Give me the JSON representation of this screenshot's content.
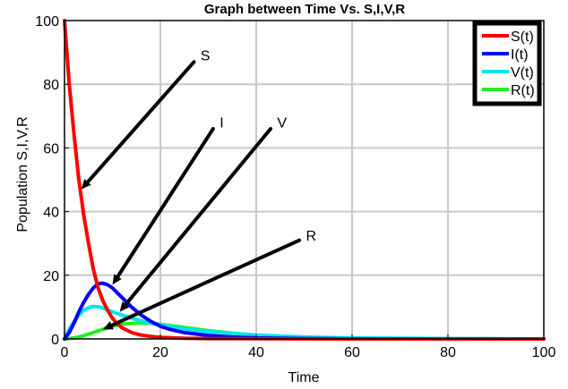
{
  "chart_data": {
    "type": "line",
    "title": "Graph between Time Vs. S,I,V,R",
    "xlabel": "Time",
    "ylabel": "Population S,I,V,R",
    "xlim": [
      0,
      100
    ],
    "ylim": [
      0,
      100
    ],
    "xticks": [
      0,
      20,
      40,
      60,
      80,
      100
    ],
    "yticks": [
      0,
      20,
      40,
      60,
      80,
      100
    ],
    "grid": true,
    "legend_position": "top-right",
    "series": [
      {
        "name": "S(t)",
        "color": "#ff0000",
        "x": [
          0,
          1,
          2,
          3,
          4,
          5,
          6,
          7,
          8,
          9,
          10,
          11,
          12,
          14,
          16,
          18,
          20,
          25,
          30,
          40,
          60,
          80,
          100
        ],
        "y": [
          100,
          80,
          64,
          50,
          39,
          30,
          22,
          16,
          12,
          9,
          6.5,
          4.8,
          3.5,
          2,
          1.2,
          0.8,
          0.5,
          0.2,
          0.1,
          0.05,
          0,
          0,
          0
        ]
      },
      {
        "name": "I(t)",
        "color": "#0000ff",
        "x": [
          0,
          1,
          2,
          3,
          4,
          5,
          6,
          7,
          8,
          9,
          10,
          11,
          12,
          14,
          16,
          18,
          20,
          22,
          25,
          30,
          35,
          40,
          50,
          60,
          80,
          100
        ],
        "y": [
          0,
          2,
          5,
          8.5,
          11.5,
          14,
          16,
          17.3,
          17.5,
          17,
          16,
          14.5,
          13,
          10,
          7.5,
          5.5,
          4,
          3,
          2,
          1.1,
          0.6,
          0.3,
          0.1,
          0,
          0,
          0
        ]
      },
      {
        "name": "V(t)",
        "color": "#00e5ee",
        "x": [
          0,
          1,
          2,
          3,
          4,
          5,
          6,
          7,
          8,
          9,
          10,
          12,
          14,
          16,
          18,
          20,
          25,
          30,
          40,
          50,
          60,
          80,
          100
        ],
        "y": [
          0,
          3,
          5.5,
          7.5,
          9,
          9.8,
          10.2,
          10.1,
          9.7,
          9.1,
          8.5,
          7.5,
          6.5,
          5.7,
          5,
          4.4,
          3.2,
          2.3,
          1.2,
          0.6,
          0.3,
          0.1,
          0
        ]
      },
      {
        "name": "R(t)",
        "color": "#22ee22",
        "x": [
          0,
          2,
          4,
          6,
          8,
          10,
          12,
          14,
          16,
          18,
          20,
          25,
          30,
          35,
          40,
          45,
          50,
          60,
          70,
          80,
          100
        ],
        "y": [
          0,
          0.3,
          1,
          2,
          3,
          4,
          4.6,
          4.9,
          5,
          4.9,
          4.6,
          3.6,
          2.6,
          1.8,
          1.2,
          0.8,
          0.5,
          0.2,
          0.1,
          0.05,
          0
        ]
      }
    ],
    "annotations": [
      {
        "text": "S",
        "from": [
          27,
          87
        ],
        "to": [
          3.5,
          47
        ],
        "label_at": [
          28,
          88
        ]
      },
      {
        "text": "I",
        "from": [
          31,
          66
        ],
        "to": [
          10,
          17
        ],
        "label_at": [
          32,
          67
        ]
      },
      {
        "text": "V",
        "from": [
          43,
          66
        ],
        "to": [
          11.5,
          8.5
        ],
        "label_at": [
          44,
          67
        ]
      },
      {
        "text": "R",
        "from": [
          49,
          31
        ],
        "to": [
          8,
          3
        ],
        "label_at": [
          50,
          31.5
        ]
      }
    ]
  }
}
